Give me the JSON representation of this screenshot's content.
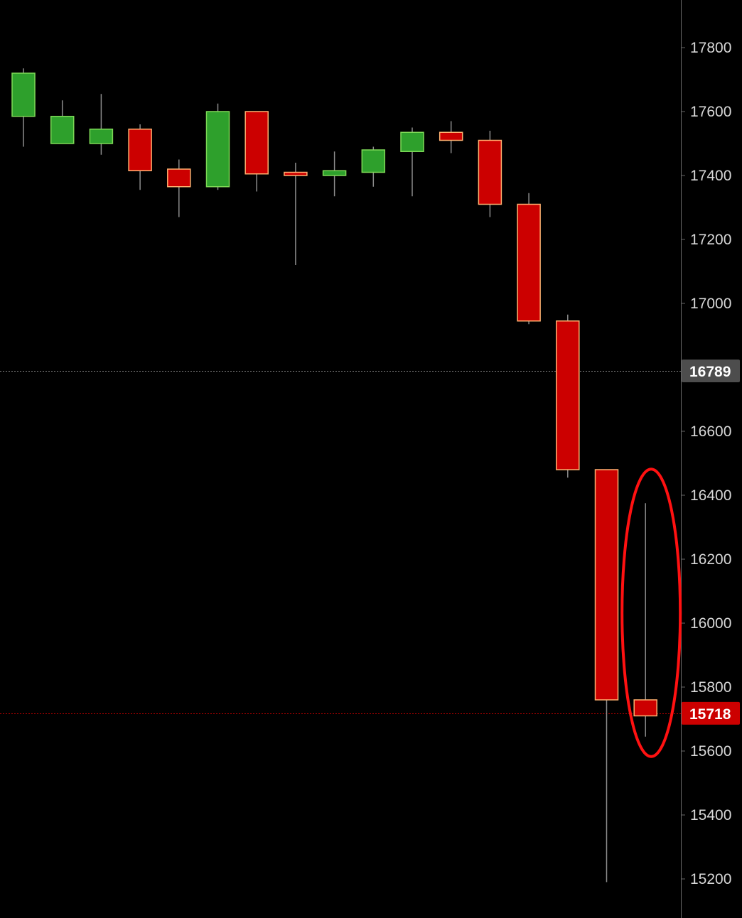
{
  "chart_data": {
    "type": "candlestick",
    "title": "",
    "xlabel": "",
    "ylabel": "",
    "ylim": [
      15130,
      17950
    ],
    "y_ticks": [
      17800,
      17600,
      17400,
      17200,
      17000,
      16800,
      16600,
      16400,
      16200,
      16000,
      15800,
      15600,
      15400,
      15200
    ],
    "grid": false,
    "candles": [
      {
        "open": 17585,
        "high": 17735,
        "low": 17490,
        "close": 17720
      },
      {
        "open": 17500,
        "high": 17635,
        "low": 17500,
        "close": 17585
      },
      {
        "open": 17500,
        "high": 17655,
        "low": 17465,
        "close": 17545
      },
      {
        "open": 17545,
        "high": 17560,
        "low": 17355,
        "close": 17415
      },
      {
        "open": 17420,
        "high": 17450,
        "low": 17270,
        "close": 17365
      },
      {
        "open": 17365,
        "high": 17625,
        "low": 17355,
        "close": 17600
      },
      {
        "open": 17600,
        "high": 17600,
        "low": 17350,
        "close": 17405
      },
      {
        "open": 17410,
        "high": 17440,
        "low": 17120,
        "close": 17400
      },
      {
        "open": 17400,
        "high": 17475,
        "low": 17335,
        "close": 17415
      },
      {
        "open": 17410,
        "high": 17490,
        "low": 17365,
        "close": 17480
      },
      {
        "open": 17475,
        "high": 17550,
        "low": 17335,
        "close": 17535
      },
      {
        "open": 17535,
        "high": 17570,
        "low": 17470,
        "close": 17510
      },
      {
        "open": 17510,
        "high": 17540,
        "low": 17270,
        "close": 17310
      },
      {
        "open": 17310,
        "high": 17345,
        "low": 16935,
        "close": 16945
      },
      {
        "open": 16945,
        "high": 16965,
        "low": 16455,
        "close": 16480
      },
      {
        "open": 16480,
        "high": 16480,
        "low": 15190,
        "close": 15760
      },
      {
        "open": 15760,
        "high": 16375,
        "low": 15645,
        "close": 15710
      }
    ],
    "price_lines": [
      {
        "label": "16789",
        "value": 16789,
        "color": "#4d4d4d",
        "style": "dotted"
      },
      {
        "label": "15718",
        "value": 15718,
        "color": "#cc0000",
        "style": "dotted"
      }
    ],
    "annotation": {
      "shape": "ellipse",
      "target_candle_index": 16,
      "color": "#ff1111"
    },
    "colors": {
      "up_fill": "#2ea02c",
      "up_border": "#7ed957",
      "down_fill": "#cc0000",
      "down_border": "#ffb070",
      "wick": "#8c8c8c",
      "axis": "#666666",
      "background": "#000000"
    }
  }
}
